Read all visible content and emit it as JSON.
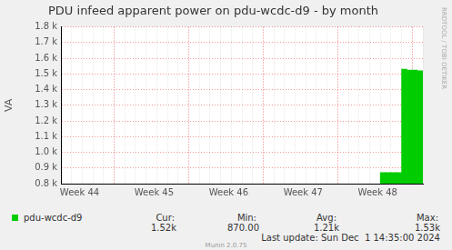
{
  "chart_data": {
    "type": "bar",
    "title": "PDU infeed apparent power on pdu-wcdc-d9 - by month",
    "y_label": "VA",
    "categories": [
      null,
      null,
      null,
      "Week 44",
      null,
      null,
      null,
      null,
      null,
      null,
      null,
      null,
      null,
      null,
      null,
      null,
      null,
      "Week 45",
      null,
      null,
      null,
      null,
      null,
      null,
      null,
      null,
      null,
      null,
      null,
      null,
      null,
      "Week 46",
      null,
      null,
      null,
      null,
      null,
      null,
      null,
      null,
      null,
      null,
      null,
      null,
      null,
      "Week 47",
      null,
      null,
      null,
      null,
      null,
      null,
      null,
      null,
      null,
      null,
      null,
      null,
      null,
      "Week 48",
      null,
      null,
      null,
      null,
      null,
      null,
      null,
      null
    ],
    "series": [
      {
        "name": "pdu-wcdc-d9",
        "color": "#00cc00",
        "values": [
          null,
          null,
          null,
          null,
          null,
          null,
          null,
          null,
          null,
          null,
          null,
          null,
          null,
          null,
          null,
          null,
          null,
          null,
          null,
          null,
          null,
          null,
          null,
          null,
          null,
          null,
          null,
          null,
          null,
          null,
          null,
          null,
          null,
          null,
          null,
          null,
          null,
          null,
          null,
          null,
          null,
          null,
          null,
          null,
          null,
          null,
          null,
          null,
          null,
          null,
          null,
          null,
          null,
          null,
          null,
          null,
          null,
          null,
          null,
          null,
          870,
          870,
          870,
          870,
          1530,
          1525,
          1525,
          1520
        ]
      }
    ],
    "ylim": [
      800,
      1800
    ],
    "yticks": [
      {
        "value": 800,
        "label": "0.8 k"
      },
      {
        "value": 900,
        "label": "0.9 k"
      },
      {
        "value": 1000,
        "label": "1.0 k"
      },
      {
        "value": 1100,
        "label": "1.1 k"
      },
      {
        "value": 1200,
        "label": "1.2 k"
      },
      {
        "value": 1300,
        "label": "1.3 k"
      },
      {
        "value": 1400,
        "label": "1.4 k"
      },
      {
        "value": 1500,
        "label": "1.5 k"
      },
      {
        "value": 1600,
        "label": "1.6 k"
      },
      {
        "value": 1700,
        "label": "1.7 k"
      },
      {
        "value": 1800,
        "label": "1.8 k"
      }
    ],
    "grid": true,
    "legend": "bottom",
    "stats": {
      "headers": [
        "Cur:",
        "Min:",
        "Avg:",
        "Max:"
      ],
      "values": [
        {
          "value": 1520,
          "label": "1.52k"
        },
        {
          "value": 870,
          "label": "870.00"
        },
        {
          "value": 1210,
          "label": "1.21k"
        },
        {
          "value": 1530,
          "label": "1.53k"
        }
      ]
    },
    "last_update": "Last update: Sun Dec  1 14:35:00 2024",
    "footer": "Munin 2.0.75",
    "watermark": "RRDTOOL / TOBI OETIKER"
  }
}
